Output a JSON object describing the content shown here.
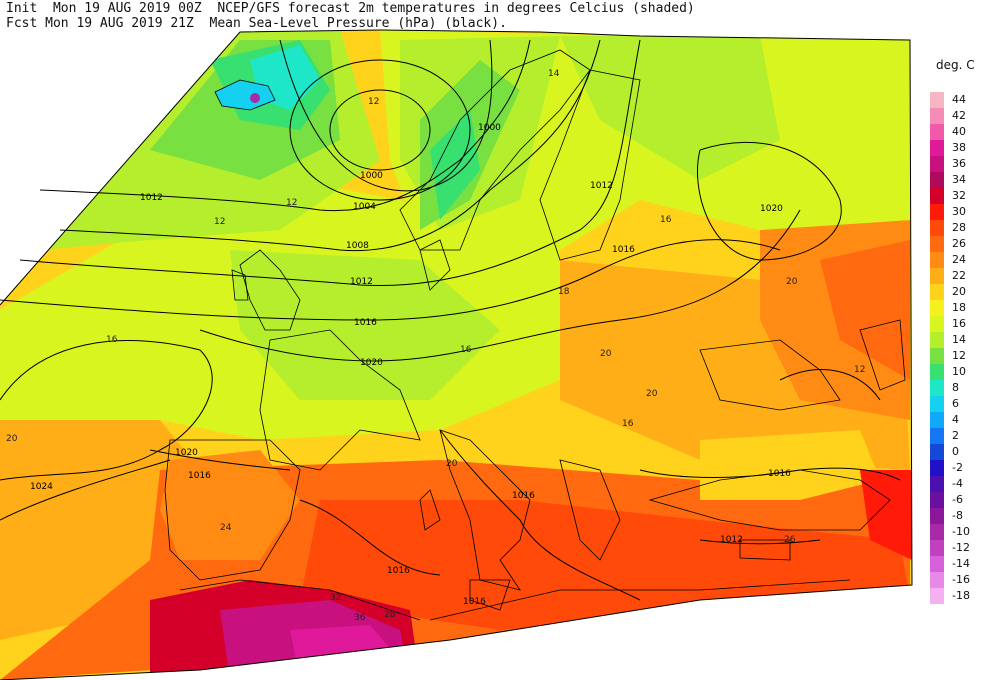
{
  "header": {
    "line1": "Init  Mon 19 AUG 2019 00Z  NCEP/GFS forecast 2m temperatures in degrees Celcius (shaded)",
    "line2": "Fcst Mon 19 AUG 2019 21Z  Mean Sea-Level Pressure (hPa) (black)."
  },
  "legend": {
    "title": "deg. C",
    "entries": [
      {
        "label": "44",
        "color": "#f7b6c4"
      },
      {
        "label": "42",
        "color": "#f58cb5"
      },
      {
        "label": "40",
        "color": "#f05aa8"
      },
      {
        "label": "38",
        "color": "#e0189a"
      },
      {
        "label": "36",
        "color": "#c8107e"
      },
      {
        "label": "34",
        "color": "#b00a5a"
      },
      {
        "label": "32",
        "color": "#d4002a"
      },
      {
        "label": "30",
        "color": "#ff1a0a"
      },
      {
        "label": "28",
        "color": "#ff4a0a"
      },
      {
        "label": "26",
        "color": "#ff6a10"
      },
      {
        "label": "24",
        "color": "#ff8a14"
      },
      {
        "label": "22",
        "color": "#ffae18"
      },
      {
        "label": "20",
        "color": "#ffd21c"
      },
      {
        "label": "18",
        "color": "#f6f01e"
      },
      {
        "label": "16",
        "color": "#d8f520"
      },
      {
        "label": "14",
        "color": "#b4ee2c"
      },
      {
        "label": "12",
        "color": "#78e040"
      },
      {
        "label": "10",
        "color": "#38e070"
      },
      {
        "label": "8",
        "color": "#1ee6c8"
      },
      {
        "label": "6",
        "color": "#16d0f0"
      },
      {
        "label": "4",
        "color": "#10a8f8"
      },
      {
        "label": "2",
        "color": "#1478f5"
      },
      {
        "label": "0",
        "color": "#1448d8"
      },
      {
        "label": "-2",
        "color": "#2010c8"
      },
      {
        "label": "-4",
        "color": "#4a10b0"
      },
      {
        "label": "-6",
        "color": "#6a10a0"
      },
      {
        "label": "-8",
        "color": "#8a1898"
      },
      {
        "label": "-10",
        "color": "#a82aa8"
      },
      {
        "label": "-12",
        "color": "#c040c0"
      },
      {
        "label": "-14",
        "color": "#d860d8"
      },
      {
        "label": "-16",
        "color": "#e888e8"
      },
      {
        "label": "-18",
        "color": "#f5b0f0"
      }
    ]
  },
  "pressure_labels": [
    "1000",
    "1000",
    "1004",
    "1008",
    "1012",
    "1012",
    "1016",
    "1020",
    "1012",
    "1016",
    "1020",
    "1016",
    "1020",
    "1024",
    "1016",
    "1016",
    "1016",
    "1016",
    "1012"
  ],
  "temperature_labels": [
    "12",
    "12",
    "12",
    "12",
    "14",
    "16",
    "16",
    "16",
    "16",
    "18",
    "20",
    "20",
    "20",
    "20",
    "20",
    "24",
    "26",
    "28",
    "32",
    "36"
  ]
}
